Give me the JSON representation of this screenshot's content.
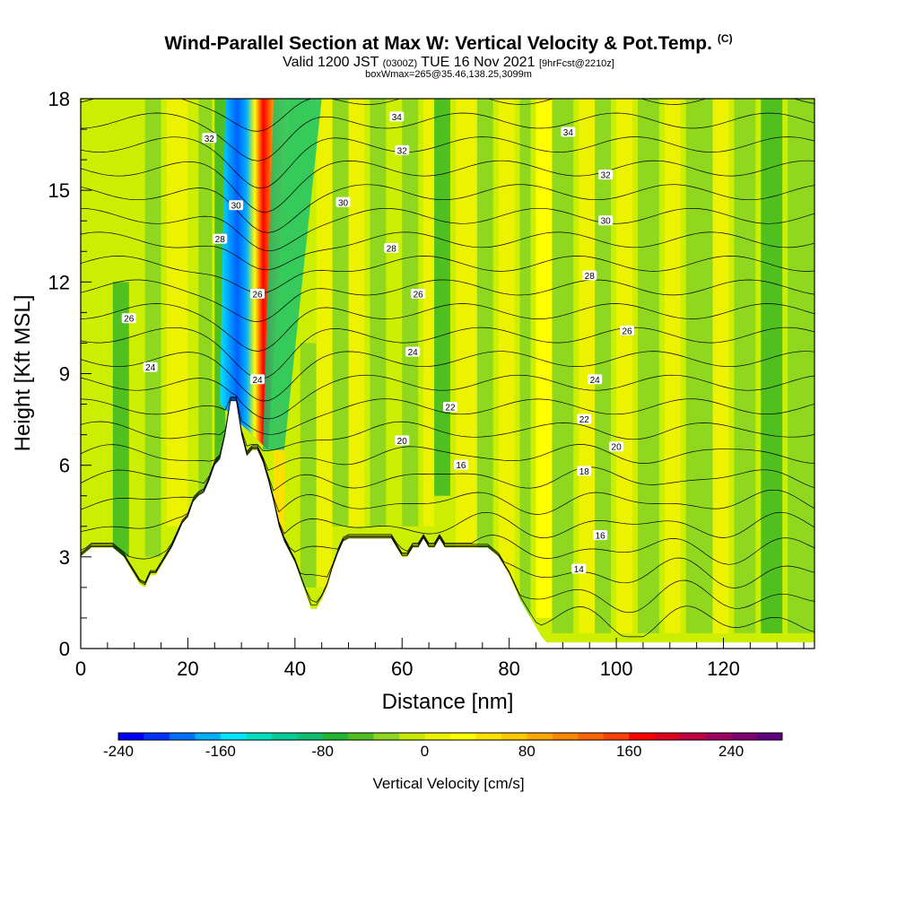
{
  "header": {
    "title": "Wind-Parallel Section at Max W: Vertical Velocity & Pot.Temp.",
    "copyright": "(C)",
    "valid_prefix": "Valid 1200 JST",
    "valid_utc": "(0300Z)",
    "valid_day": "TUE 16 Nov 2021",
    "forecast_info": "[9hrFcst@2210z]",
    "box_info": "boxWmax=265@35.46,138.25,3099m"
  },
  "colorbar": {
    "label": "Vertical Velocity [cm/s]",
    "tick_labels": [
      "-240",
      "-160",
      "-80",
      "0",
      "80",
      "160",
      "240"
    ],
    "colors": [
      "#0000ff",
      "#0033ff",
      "#0070ff",
      "#00b0ff",
      "#00e6ff",
      "#00e0c0",
      "#00cc99",
      "#10c070",
      "#20b830",
      "#50c020",
      "#90d820",
      "#c8e800",
      "#ecf200",
      "#ffff00",
      "#ffe000",
      "#ffc800",
      "#ffa800",
      "#ff8800",
      "#ff6600",
      "#ff4000",
      "#ff0000",
      "#e00020",
      "#c00040",
      "#a00060",
      "#800070",
      "#600080"
    ]
  },
  "chart_data": {
    "type": "heatmap",
    "title": "Wind-Parallel Section at Max W: Vertical Velocity & Pot.Temp.",
    "xlabel": "Distance [nm]",
    "ylabel": "Height [Kft MSL]",
    "xlim": [
      0,
      137
    ],
    "ylim": [
      0,
      18
    ],
    "x_ticks": [
      0,
      20,
      40,
      60,
      80,
      100,
      120
    ],
    "y_ticks": [
      0,
      3,
      6,
      9,
      12,
      15,
      18
    ],
    "colorbar_range": [
      -240,
      280
    ],
    "grid": false,
    "variables": [
      "Vertical Velocity [cm/s] (filled)",
      "Potential Temperature (contours)"
    ],
    "terrain": {
      "x": [
        0,
        2,
        4,
        6,
        8,
        9,
        10,
        11,
        12,
        13,
        14,
        15,
        16,
        17,
        18,
        19,
        20,
        21,
        22,
        23,
        24,
        25,
        26,
        27,
        28,
        29,
        30,
        31,
        32,
        33,
        34,
        35,
        36,
        37,
        38,
        40,
        42,
        43,
        44,
        45,
        46,
        47,
        48,
        49,
        50,
        52,
        55,
        58,
        59,
        60,
        61,
        62,
        63,
        64,
        65,
        66,
        67,
        68,
        70,
        72,
        74,
        76,
        78,
        79,
        80,
        81,
        82,
        83,
        84,
        85,
        86,
        87,
        137
      ],
      "height_kft": [
        3.0,
        3.3,
        3.3,
        3.3,
        3.0,
        2.7,
        2.4,
        2.1,
        2.0,
        2.4,
        2.4,
        2.7,
        3.0,
        3.3,
        3.7,
        4.1,
        4.3,
        4.8,
        5.0,
        5.1,
        5.5,
        6.0,
        6.2,
        7.0,
        8.1,
        8.1,
        7.0,
        6.3,
        6.5,
        6.5,
        6.1,
        5.5,
        4.8,
        4.0,
        3.5,
        2.8,
        1.8,
        1.3,
        1.3,
        1.6,
        2.0,
        2.6,
        3.1,
        3.5,
        3.6,
        3.6,
        3.6,
        3.6,
        3.3,
        3.0,
        3.0,
        3.3,
        3.3,
        3.6,
        3.3,
        3.3,
        3.6,
        3.3,
        3.3,
        3.3,
        3.3,
        3.3,
        3.0,
        2.7,
        2.4,
        2.0,
        1.6,
        1.3,
        1.0,
        0.7,
        0.4,
        0.2,
        0.2
      ]
    },
    "updraft_core": {
      "x": [
        31,
        35
      ],
      "height_kft": [
        6.5,
        18
      ],
      "peak_cm_s": 265
    },
    "downdraft_core": {
      "x": [
        28,
        31
      ],
      "height_kft": [
        8,
        18
      ],
      "min_cm_s": -240
    },
    "theta_contour_labels": [
      {
        "value": "14",
        "x": 93,
        "height_kft": 2.6
      },
      {
        "value": "16",
        "x": 97,
        "height_kft": 3.7
      },
      {
        "value": "16",
        "x": 71,
        "height_kft": 6.0
      },
      {
        "value": "18",
        "x": 94,
        "height_kft": 5.8
      },
      {
        "value": "20",
        "x": 60,
        "height_kft": 6.8
      },
      {
        "value": "20",
        "x": 100,
        "height_kft": 6.6
      },
      {
        "value": "22",
        "x": 69,
        "height_kft": 7.9
      },
      {
        "value": "22",
        "x": 94,
        "height_kft": 7.5
      },
      {
        "value": "24",
        "x": 13,
        "height_kft": 9.2
      },
      {
        "value": "24",
        "x": 33,
        "height_kft": 8.8
      },
      {
        "value": "24",
        "x": 62,
        "height_kft": 9.7
      },
      {
        "value": "24",
        "x": 96,
        "height_kft": 8.8
      },
      {
        "value": "26",
        "x": 9,
        "height_kft": 10.8
      },
      {
        "value": "26",
        "x": 33,
        "height_kft": 11.6
      },
      {
        "value": "26",
        "x": 63,
        "height_kft": 11.6
      },
      {
        "value": "26",
        "x": 102,
        "height_kft": 10.4
      },
      {
        "value": "28",
        "x": 26,
        "height_kft": 13.4
      },
      {
        "value": "28",
        "x": 58,
        "height_kft": 13.1
      },
      {
        "value": "28",
        "x": 95,
        "height_kft": 12.2
      },
      {
        "value": "30",
        "x": 29,
        "height_kft": 14.5
      },
      {
        "value": "30",
        "x": 49,
        "height_kft": 14.6
      },
      {
        "value": "30",
        "x": 98,
        "height_kft": 14.0
      },
      {
        "value": "32",
        "x": 24,
        "height_kft": 16.7
      },
      {
        "value": "32",
        "x": 60,
        "height_kft": 16.3
      },
      {
        "value": "32",
        "x": 98,
        "height_kft": 15.5
      },
      {
        "value": "34",
        "x": 59,
        "height_kft": 17.4
      },
      {
        "value": "34",
        "x": 91,
        "height_kft": 16.9
      }
    ]
  }
}
